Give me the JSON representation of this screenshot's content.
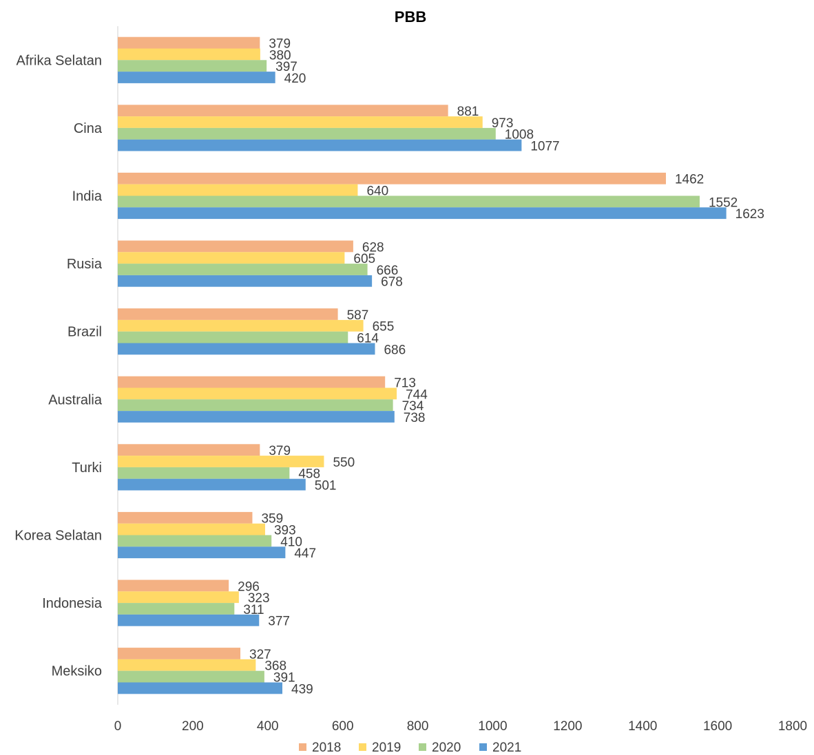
{
  "chart_data": {
    "type": "bar",
    "orientation": "horizontal",
    "title": "PBB",
    "xlabel": "",
    "ylabel": "",
    "xlim": [
      0,
      1800
    ],
    "x_ticks": [
      "0",
      "200",
      "400",
      "600",
      "800",
      "1000",
      "1200",
      "1400",
      "1600",
      "1800"
    ],
    "grid": false,
    "legend_position": "bottom",
    "categories": [
      "Afrika Selatan",
      "Cina",
      "India",
      "Rusia",
      "Brazil",
      "Australia",
      "Turki",
      "Korea Selatan",
      "Indonesia",
      "Meksiko"
    ],
    "series": [
      {
        "name": "2018",
        "color": "#f4b183",
        "values": [
          379,
          881,
          1462,
          628,
          587,
          713,
          379,
          359,
          296,
          327
        ]
      },
      {
        "name": "2019",
        "color": "#ffd966",
        "values": [
          380,
          973,
          640,
          605,
          655,
          744,
          550,
          393,
          323,
          368
        ]
      },
      {
        "name": "2020",
        "color": "#a9d18e",
        "values": [
          397,
          1008,
          1552,
          666,
          614,
          734,
          458,
          410,
          311,
          391
        ]
      },
      {
        "name": "2021",
        "color": "#5b9bd5",
        "values": [
          420,
          1077,
          1623,
          678,
          686,
          738,
          501,
          447,
          377,
          439
        ]
      }
    ]
  }
}
